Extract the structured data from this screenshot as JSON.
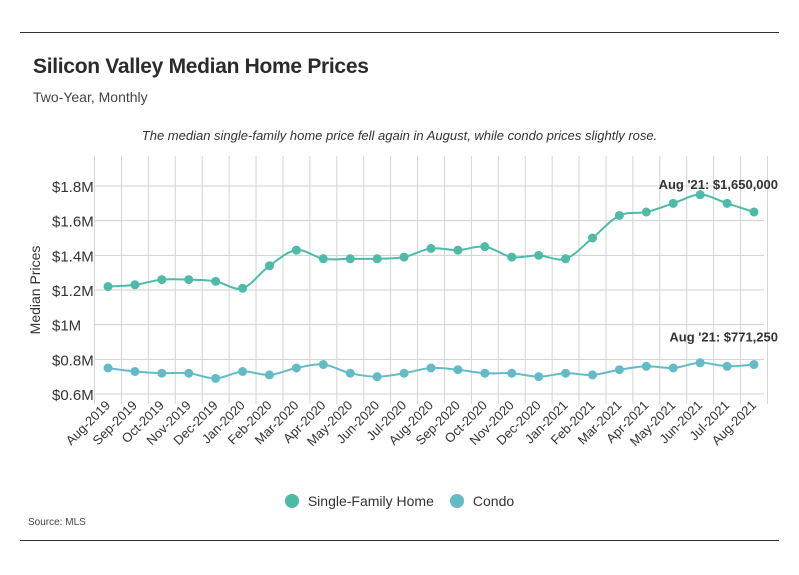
{
  "header": {
    "title": "Silicon Valley Median Home Prices",
    "subtitle": "Two-Year, Monthly",
    "note": "The median single-family home price fell again in August, while condo prices slightly rose.",
    "source": "Source:  MLS"
  },
  "chart_data": {
    "type": "line",
    "title": "Silicon Valley Median Home Prices",
    "subtitle": "Two-Year, Monthly",
    "ylabel": "Median Prices",
    "xlabel": "",
    "ylim": [
      0.6,
      1.8
    ],
    "yticks": [
      {
        "value": 1.8,
        "label": "$1.8M"
      },
      {
        "value": 1.6,
        "label": "$1.6M"
      },
      {
        "value": 1.4,
        "label": "$1.4M"
      },
      {
        "value": 1.2,
        "label": "$1.2M"
      },
      {
        "value": 1.0,
        "label": "$1M"
      },
      {
        "value": 0.8,
        "label": "$0.8M"
      },
      {
        "value": 0.6,
        "label": "$0.6M"
      }
    ],
    "grid": true,
    "legend_position": "bottom",
    "categories": [
      "Aug-2019",
      "Sep-2019",
      "Oct-2019",
      "Nov-2019",
      "Dec-2019",
      "Jan-2020",
      "Feb-2020",
      "Mar-2020",
      "Apr-2020",
      "May-2020",
      "Jun-2020",
      "Jul-2020",
      "Aug-2020",
      "Sep-2020",
      "Oct-2020",
      "Nov-2020",
      "Dec-2020",
      "Jan-2021",
      "Feb-2021",
      "Mar-2021",
      "Apr-2021",
      "May-2021",
      "Jun-2021",
      "Jul-2021",
      "Aug-2021"
    ],
    "series": [
      {
        "name": "Single-Family Home",
        "color": "#4dbba5",
        "values": [
          1.22,
          1.23,
          1.26,
          1.26,
          1.25,
          1.21,
          1.34,
          1.43,
          1.38,
          1.38,
          1.38,
          1.39,
          1.44,
          1.43,
          1.45,
          1.39,
          1.4,
          1.38,
          1.5,
          1.63,
          1.65,
          1.7,
          1.75,
          1.7,
          1.65
        ]
      },
      {
        "name": "Condo",
        "color": "#63bcc5",
        "values": [
          0.75,
          0.73,
          0.72,
          0.72,
          0.69,
          0.73,
          0.71,
          0.75,
          0.77,
          0.72,
          0.7,
          0.72,
          0.75,
          0.74,
          0.72,
          0.72,
          0.7,
          0.72,
          0.71,
          0.74,
          0.76,
          0.75,
          0.78,
          0.76,
          0.77
        ]
      }
    ],
    "annotations": [
      {
        "series": 0,
        "index": 24,
        "text": "Aug '21: $1,650,000"
      },
      {
        "series": 1,
        "index": 24,
        "text": "Aug '21: $771,250"
      }
    ]
  }
}
